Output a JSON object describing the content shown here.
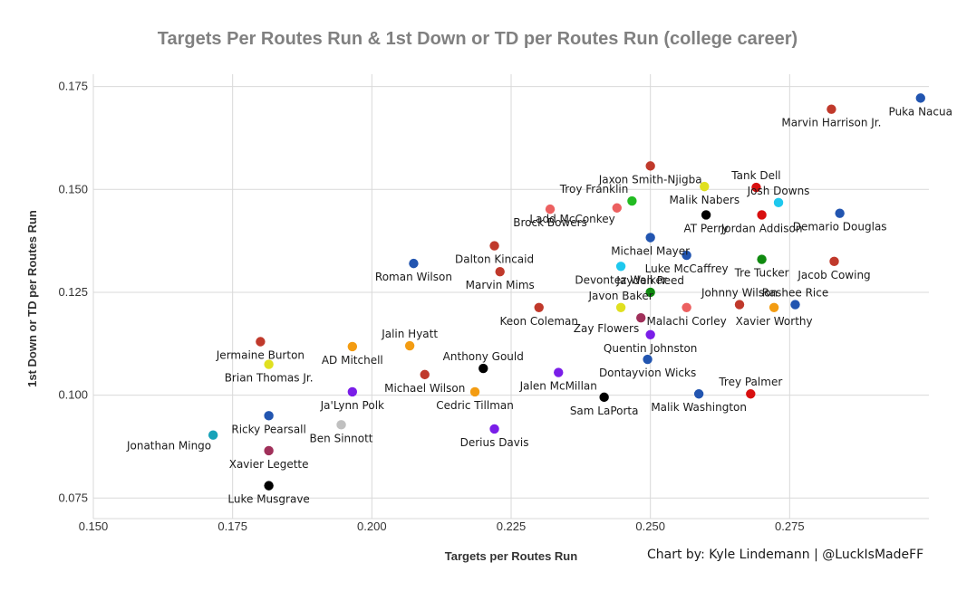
{
  "chart_data": {
    "type": "scatter",
    "title": "Targets Per Routes Run & 1st Down or TD per Routes Run (college career)",
    "xlabel": "Targets per Routes Run",
    "ylabel": "1st Down or TD per Routes Run",
    "credit": "Chart by: Kyle Lindemann | @LuckIsMadeFF",
    "xlim": [
      0.15,
      0.3
    ],
    "ylim": [
      0.07,
      0.178
    ],
    "x_ticks": [
      "0.150",
      "0.175",
      "0.200",
      "0.225",
      "0.250",
      "0.275"
    ],
    "y_ticks": [
      "0.075",
      "0.100",
      "0.125",
      "0.150",
      "0.175"
    ],
    "grid": true,
    "points": [
      {
        "name": "Puka Nacua",
        "x": 0.2985,
        "y": 0.1722,
        "color": "#2255b0",
        "label_pos": "below"
      },
      {
        "name": "Marvin Harrison Jr.",
        "x": 0.2825,
        "y": 0.1695,
        "color": "#c0392b",
        "label_pos": "below"
      },
      {
        "name": "Jaxon Smith-Njigba",
        "x": 0.25,
        "y": 0.1557,
        "color": "#c0392b",
        "label_pos": "below"
      },
      {
        "name": "Tank Dell",
        "x": 0.269,
        "y": 0.1505,
        "color": "#d80f0f",
        "label_pos": "above"
      },
      {
        "name": "Malik Nabers",
        "x": 0.2597,
        "y": 0.1507,
        "color": "#e0e020",
        "label_pos": "below"
      },
      {
        "name": "Troy Franklin",
        "x": 0.2467,
        "y": 0.1472,
        "color": "#22bb22",
        "label_pos": "above-left"
      },
      {
        "name": "Josh Downs",
        "x": 0.273,
        "y": 0.1468,
        "color": "#1ec8ee",
        "label_pos": "above"
      },
      {
        "name": "Ladd McConkey",
        "x": 0.244,
        "y": 0.1455,
        "color": "#ec6060",
        "label_pos": "below-left"
      },
      {
        "name": "Brock Bowers",
        "x": 0.232,
        "y": 0.1452,
        "color": "#ec6060",
        "label_pos": "below"
      },
      {
        "name": "AT Perry",
        "x": 0.26,
        "y": 0.1438,
        "color": "#000000",
        "label_pos": "below"
      },
      {
        "name": "Jordan Addison",
        "x": 0.27,
        "y": 0.1438,
        "color": "#d80f0f",
        "label_pos": "below"
      },
      {
        "name": "Demario Douglas",
        "x": 0.284,
        "y": 0.1442,
        "color": "#2255b0",
        "label_pos": "below"
      },
      {
        "name": "Michael Mayer",
        "x": 0.25,
        "y": 0.1383,
        "color": "#2255b0",
        "label_pos": "below"
      },
      {
        "name": "Dalton Kincaid",
        "x": 0.222,
        "y": 0.1363,
        "color": "#c0392b",
        "label_pos": "below"
      },
      {
        "name": "Luke McCaffrey",
        "x": 0.2565,
        "y": 0.134,
        "color": "#2255b0",
        "label_pos": "below"
      },
      {
        "name": "Jacob Cowing",
        "x": 0.283,
        "y": 0.1325,
        "color": "#c0392b",
        "label_pos": "below"
      },
      {
        "name": "Tre Tucker",
        "x": 0.27,
        "y": 0.133,
        "color": "#0f8a0f",
        "label_pos": "below"
      },
      {
        "name": "Roman Wilson",
        "x": 0.2075,
        "y": 0.132,
        "color": "#2255b0",
        "label_pos": "below"
      },
      {
        "name": "Devontez Walker",
        "x": 0.2447,
        "y": 0.1313,
        "color": "#1ec8ee",
        "label_pos": "below"
      },
      {
        "name": "Marvin Mims",
        "x": 0.223,
        "y": 0.13,
        "color": "#c0392b",
        "label_pos": "below"
      },
      {
        "name": "Jayden Reed",
        "x": 0.25,
        "y": 0.125,
        "color": "#0f8a0f",
        "label_pos": "above"
      },
      {
        "name": "Javon Baker",
        "x": 0.2447,
        "y": 0.1213,
        "color": "#e0e020",
        "label_pos": "above"
      },
      {
        "name": "Johnny Wilson",
        "x": 0.266,
        "y": 0.122,
        "color": "#c0392b",
        "label_pos": "above"
      },
      {
        "name": "Rashee Rice",
        "x": 0.276,
        "y": 0.122,
        "color": "#2255b0",
        "label_pos": "above"
      },
      {
        "name": "Keon Coleman",
        "x": 0.23,
        "y": 0.1213,
        "color": "#c0392b",
        "label_pos": "below"
      },
      {
        "name": "Xavier Worthy",
        "x": 0.2722,
        "y": 0.1213,
        "color": "#f39c12",
        "label_pos": "below"
      },
      {
        "name": "Malachi Corley",
        "x": 0.2565,
        "y": 0.1213,
        "color": "#ec6060",
        "label_pos": "below"
      },
      {
        "name": "Zay Flowers",
        "x": 0.2483,
        "y": 0.1188,
        "color": "#a0305a",
        "label_pos": "below-left"
      },
      {
        "name": "Quentin Johnston",
        "x": 0.25,
        "y": 0.1147,
        "color": "#7a1ee8",
        "label_pos": "below"
      },
      {
        "name": "Jermaine Burton",
        "x": 0.18,
        "y": 0.113,
        "color": "#c0392b",
        "label_pos": "below"
      },
      {
        "name": "Jalin Hyatt",
        "x": 0.2068,
        "y": 0.112,
        "color": "#f39c12",
        "label_pos": "above"
      },
      {
        "name": "AD Mitchell",
        "x": 0.1965,
        "y": 0.1118,
        "color": "#f39c12",
        "label_pos": "below"
      },
      {
        "name": "Brian Thomas Jr.",
        "x": 0.1815,
        "y": 0.1075,
        "color": "#e0e020",
        "label_pos": "below"
      },
      {
        "name": "Dontayvion Wicks",
        "x": 0.2495,
        "y": 0.1087,
        "color": "#2255b0",
        "label_pos": "below"
      },
      {
        "name": "Anthony Gould",
        "x": 0.22,
        "y": 0.1065,
        "color": "#000000",
        "label_pos": "above"
      },
      {
        "name": "Michael Wilson",
        "x": 0.2095,
        "y": 0.105,
        "color": "#c0392b",
        "label_pos": "below"
      },
      {
        "name": "Jalen McMillan",
        "x": 0.2335,
        "y": 0.1055,
        "color": "#7a1ee8",
        "label_pos": "below"
      },
      {
        "name": "Ja'Lynn Polk",
        "x": 0.1965,
        "y": 0.1008,
        "color": "#7a1ee8",
        "label_pos": "below"
      },
      {
        "name": "Cedric Tillman",
        "x": 0.2185,
        "y": 0.1008,
        "color": "#f39c12",
        "label_pos": "below"
      },
      {
        "name": "Sam LaPorta",
        "x": 0.2417,
        "y": 0.0995,
        "color": "#000000",
        "label_pos": "below"
      },
      {
        "name": "Malik Washington",
        "x": 0.2587,
        "y": 0.1003,
        "color": "#2255b0",
        "label_pos": "below"
      },
      {
        "name": "Trey Palmer",
        "x": 0.268,
        "y": 0.1003,
        "color": "#d80f0f",
        "label_pos": "above"
      },
      {
        "name": "Ricky Pearsall",
        "x": 0.1815,
        "y": 0.095,
        "color": "#2255b0",
        "label_pos": "below"
      },
      {
        "name": "Ben Sinnott",
        "x": 0.1945,
        "y": 0.0928,
        "color": "#c0c0c0",
        "label_pos": "below"
      },
      {
        "name": "Derius Davis",
        "x": 0.222,
        "y": 0.0918,
        "color": "#7a1ee8",
        "label_pos": "below"
      },
      {
        "name": "Jonathan Mingo",
        "x": 0.1715,
        "y": 0.0903,
        "color": "#17a2b8",
        "label_pos": "below-left"
      },
      {
        "name": "Xavier Legette",
        "x": 0.1815,
        "y": 0.0865,
        "color": "#a0305a",
        "label_pos": "below"
      },
      {
        "name": "Luke Musgrave",
        "x": 0.1815,
        "y": 0.078,
        "color": "#000000",
        "label_pos": "below"
      }
    ]
  }
}
